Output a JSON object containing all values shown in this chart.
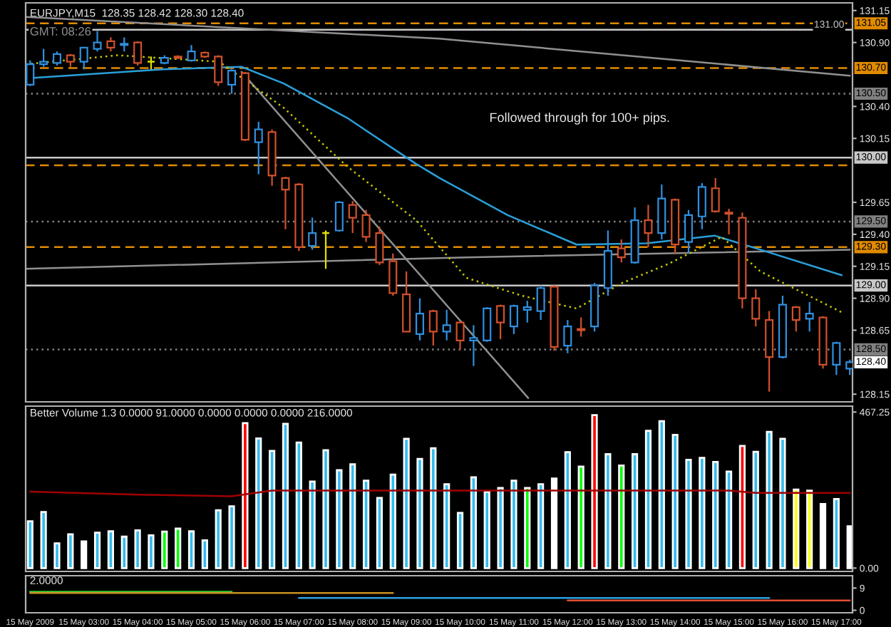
{
  "chart_data": [
    {
      "type": "candlestick",
      "title": "EURJPY,M15  128.35 128.42 128.30 128.40",
      "subtitle": "GMT: 08:26",
      "annotations": [
        "Followed through for 100+ pips.",
        {
          "text": "128.40",
          "x": "2009-05-15T17:15",
          "y": 128.4
        }
      ],
      "x": [
        "2009-05-15T02:00",
        "2009-05-15T02:15",
        "2009-05-15T02:30",
        "2009-05-15T02:45",
        "2009-05-15T03:00",
        "2009-05-15T03:15",
        "2009-05-15T03:30",
        "2009-05-15T03:45",
        "2009-05-15T04:00",
        "2009-05-15T04:15",
        "2009-05-15T04:30",
        "2009-05-15T04:45",
        "2009-05-15T05:00",
        "2009-05-15T05:15",
        "2009-05-15T05:30",
        "2009-05-15T05:45",
        "2009-05-15T06:00",
        "2009-05-15T06:15",
        "2009-05-15T06:30",
        "2009-05-15T06:45",
        "2009-05-15T07:00",
        "2009-05-15T07:15",
        "2009-05-15T07:30",
        "2009-05-15T07:45",
        "2009-05-15T08:00",
        "2009-05-15T08:15",
        "2009-05-15T08:30",
        "2009-05-15T08:45",
        "2009-05-15T09:00",
        "2009-05-15T09:15",
        "2009-05-15T09:30",
        "2009-05-15T09:45",
        "2009-05-15T10:00",
        "2009-05-15T10:15",
        "2009-05-15T10:30",
        "2009-05-15T10:45",
        "2009-05-15T11:00",
        "2009-05-15T11:15",
        "2009-05-15T11:30",
        "2009-05-15T11:45",
        "2009-05-15T12:00",
        "2009-05-15T12:15",
        "2009-05-15T12:30",
        "2009-05-15T12:45",
        "2009-05-15T13:00",
        "2009-05-15T13:15",
        "2009-05-15T13:30",
        "2009-05-15T13:45",
        "2009-05-15T14:00",
        "2009-05-15T14:15",
        "2009-05-15T14:30",
        "2009-05-15T14:45",
        "2009-05-15T15:00",
        "2009-05-15T15:15",
        "2009-05-15T15:30",
        "2009-05-15T15:45",
        "2009-05-15T16:00",
        "2009-05-15T16:15",
        "2009-05-15T16:30",
        "2009-05-15T16:45",
        "2009-05-15T17:00",
        "2009-05-15T17:15"
      ],
      "ohlc": [
        [
          130.57,
          130.76,
          130.56,
          130.73
        ],
        [
          130.73,
          130.85,
          130.71,
          130.75
        ],
        [
          130.74,
          130.83,
          130.72,
          130.81
        ],
        [
          130.8,
          130.81,
          130.71,
          130.75
        ],
        [
          130.75,
          130.86,
          130.69,
          130.86
        ],
        [
          130.85,
          130.99,
          130.83,
          130.9
        ],
        [
          130.91,
          130.94,
          130.83,
          130.86
        ],
        [
          130.88,
          130.94,
          130.83,
          130.89
        ],
        [
          130.9,
          130.91,
          130.72,
          130.74
        ],
        [
          130.75,
          130.79,
          130.69,
          130.75
        ],
        [
          130.74,
          130.8,
          130.73,
          130.78
        ],
        [
          130.79,
          130.8,
          130.77,
          130.78
        ],
        [
          130.76,
          130.88,
          130.75,
          130.83
        ],
        [
          130.82,
          130.83,
          130.78,
          130.79
        ],
        [
          130.79,
          130.8,
          130.56,
          130.59
        ],
        [
          130.57,
          130.69,
          130.5,
          130.68
        ],
        [
          130.66,
          130.67,
          130.13,
          130.14
        ],
        [
          130.12,
          130.28,
          129.87,
          130.22
        ],
        [
          130.2,
          130.22,
          129.78,
          129.86
        ],
        [
          129.84,
          129.85,
          129.44,
          129.75
        ],
        [
          129.79,
          129.8,
          129.27,
          129.3
        ],
        [
          129.31,
          129.53,
          129.28,
          129.41
        ],
        [
          129.41,
          129.43,
          129.13,
          129.41
        ],
        [
          129.43,
          129.66,
          129.42,
          129.65
        ],
        [
          129.63,
          129.66,
          129.41,
          129.53
        ],
        [
          129.55,
          129.59,
          129.34,
          129.38
        ],
        [
          129.41,
          129.46,
          129.16,
          129.18
        ],
        [
          129.19,
          129.25,
          128.92,
          128.94
        ],
        [
          128.93,
          129.11,
          128.64,
          128.64
        ],
        [
          128.62,
          128.9,
          128.57,
          128.78
        ],
        [
          128.8,
          128.81,
          128.53,
          128.64
        ],
        [
          128.64,
          128.81,
          128.57,
          128.69
        ],
        [
          128.71,
          128.72,
          128.5,
          128.57
        ],
        [
          128.57,
          128.69,
          128.37,
          128.59
        ],
        [
          128.57,
          128.83,
          128.56,
          128.82
        ],
        [
          128.84,
          128.85,
          128.58,
          128.71
        ],
        [
          128.68,
          128.85,
          128.62,
          128.84
        ],
        [
          128.81,
          128.88,
          128.71,
          128.83
        ],
        [
          128.8,
          129.0,
          128.73,
          128.98
        ],
        [
          128.99,
          129.0,
          128.49,
          128.52
        ],
        [
          128.53,
          128.73,
          128.47,
          128.68
        ],
        [
          128.66,
          128.75,
          128.6,
          128.65
        ],
        [
          128.68,
          129.02,
          128.64,
          129.0
        ],
        [
          128.98,
          129.43,
          128.92,
          129.27
        ],
        [
          129.29,
          129.36,
          129.18,
          129.22
        ],
        [
          129.18,
          129.61,
          129.17,
          129.51
        ],
        [
          129.51,
          129.63,
          129.3,
          129.41
        ],
        [
          129.41,
          129.79,
          129.36,
          129.68
        ],
        [
          129.67,
          129.68,
          129.25,
          129.32
        ],
        [
          129.34,
          129.59,
          129.25,
          129.55
        ],
        [
          129.54,
          129.8,
          129.44,
          129.77
        ],
        [
          129.76,
          129.84,
          129.57,
          129.58
        ],
        [
          129.57,
          129.6,
          129.4,
          129.56
        ],
        [
          129.53,
          129.57,
          128.82,
          128.9
        ],
        [
          128.9,
          128.97,
          128.68,
          128.74
        ],
        [
          128.73,
          128.8,
          128.17,
          128.44
        ],
        [
          128.44,
          128.92,
          128.43,
          128.85
        ],
        [
          128.83,
          128.84,
          128.64,
          128.73
        ],
        [
          128.74,
          128.87,
          128.64,
          128.78
        ],
        [
          128.75,
          128.76,
          128.35,
          128.38
        ],
        [
          128.38,
          128.56,
          128.3,
          128.55
        ],
        [
          128.35,
          128.42,
          128.3,
          128.4
        ]
      ],
      "colors": [
        "#2f8fdf",
        "#2f8fdf",
        "#2f8fdf",
        "#d0502c",
        "#2f8fdf",
        "#2f8fdf",
        "#d0502c",
        "#2f8fdf",
        "#d0502c",
        "#e0e000",
        "#2f8fdf",
        "#d0502c",
        "#2f8fdf",
        "#d0502c",
        "#d0502c",
        "#2f8fdf",
        "#d0502c",
        "#2f8fdf",
        "#d0502c",
        "#d0502c",
        "#d0502c",
        "#2f8fdf",
        "#e0e000",
        "#2f8fdf",
        "#d0502c",
        "#d0502c",
        "#d0502c",
        "#d0502c",
        "#d0502c",
        "#2f8fdf",
        "#d0502c",
        "#2f8fdf",
        "#d0502c",
        "#2f8fdf",
        "#2f8fdf",
        "#d0502c",
        "#2f8fdf",
        "#2f8fdf",
        "#2f8fdf",
        "#d0502c",
        "#2f8fdf",
        "#d0502c",
        "#2f8fdf",
        "#2f8fdf",
        "#d0502c",
        "#2f8fdf",
        "#d0502c",
        "#2f8fdf",
        "#d0502c",
        "#2f8fdf",
        "#2f8fdf",
        "#d0502c",
        "#d0502c",
        "#d0502c",
        "#d0502c",
        "#d0502c",
        "#2f8fdf",
        "#d0502c",
        "#2f8fdf",
        "#d0502c",
        "#2f8fdf",
        "#2f8fdf"
      ],
      "series": [
        {
          "type": "line",
          "color": "#909090",
          "line_style": "solid",
          "x": [
            "2009-05-15T01:55",
            "2009-05-15T09:37",
            "2009-05-15T17:15"
          ],
          "values": [
            131.1,
            130.93,
            130.64
          ]
        },
        {
          "type": "line",
          "color": "#909090",
          "line_style": "solid",
          "x": [
            "2009-05-15T05:56",
            "2009-05-15T11:16"
          ],
          "values": [
            130.67,
            128.12
          ]
        },
        {
          "type": "line",
          "color": "#909090",
          "line_style": "solid",
          "x": [
            "2009-05-15T01:55",
            "2009-05-15T10:07",
            "2009-05-15T17:15"
          ],
          "values": [
            129.13,
            129.22,
            129.28
          ]
        },
        {
          "type": "line",
          "color": "#2a9fd8",
          "line_style": "solid",
          "x": [
            "2009-05-15T01:55",
            "2009-05-15T04:29",
            "2009-05-15T05:56",
            "2009-05-15T06:43",
            "2009-05-15T07:54",
            "2009-05-15T09:11",
            "2009-05-15T09:37",
            "2009-05-15T10:53",
            "2009-05-15T12:10",
            "2009-05-15T13:28",
            "2009-05-15T14:44",
            "2009-05-15T15:35",
            "2009-05-15T17:06"
          ],
          "values": [
            130.62,
            130.69,
            130.71,
            130.58,
            130.31,
            129.95,
            129.84,
            129.55,
            129.32,
            129.33,
            129.39,
            129.28,
            129.08
          ]
        },
        {
          "type": "line",
          "color": "#c8c800",
          "line_style": "dotted",
          "x": [
            "2009-05-15T01:55",
            "2009-05-15T03:38",
            "2009-05-15T05:31",
            "2009-05-15T06:43",
            "2009-05-15T07:54",
            "2009-05-15T09:11",
            "2009-05-15T10:07",
            "2009-05-15T11:09",
            "2009-05-15T12:10",
            "2009-05-15T13:01",
            "2009-05-15T13:53",
            "2009-05-15T14:52",
            "2009-05-15T15:35",
            "2009-05-15T17:06"
          ],
          "values": [
            130.73,
            130.8,
            130.75,
            130.39,
            129.93,
            129.51,
            129.06,
            128.92,
            128.82,
            129.02,
            129.17,
            129.38,
            129.11,
            128.79
          ]
        }
      ],
      "ref_lines": [
        {
          "axis": "y",
          "value": 131.05,
          "label": "131.05",
          "color": "#e08a00",
          "line_style": "dashed"
        },
        {
          "axis": "y",
          "value": 131.0,
          "label": "131.00",
          "color": "#c8c8c8",
          "line_style": "solid"
        },
        {
          "axis": "y",
          "value": 130.7,
          "label": "130.70",
          "color": "#e08a00",
          "line_style": "dashed"
        },
        {
          "axis": "y",
          "value": 130.5,
          "label": "130.50",
          "color": "#808080",
          "line_style": "dotted"
        },
        {
          "axis": "y",
          "value": 130.0,
          "label": "130.00",
          "color": "#c8c8c8",
          "line_style": "solid"
        },
        {
          "axis": "y",
          "value": 129.94,
          "label": null,
          "color": "#e08a00",
          "line_style": "dashed"
        },
        {
          "axis": "y",
          "value": 129.5,
          "label": "129.50",
          "color": "#808080",
          "line_style": "dotted"
        },
        {
          "axis": "y",
          "value": 129.3,
          "label": "129.30",
          "color": "#e08a00",
          "line_style": "dashed"
        },
        {
          "axis": "y",
          "value": 129.0,
          "label": "129.00",
          "color": "#c8c8c8",
          "line_style": "solid"
        },
        {
          "axis": "y",
          "value": 128.5,
          "label": "128.50",
          "color": "#808080",
          "line_style": "dotted"
        }
      ],
      "xlim": [
        "2009-05-15T01:55",
        "2009-05-15T17:18"
      ],
      "ylim": [
        128.09,
        131.21
      ],
      "yticks": [
        131.15,
        {
          "value": 130.9,
          "label": "130.90"
        },
        {
          "value": 130.4,
          "label": "130.40"
        },
        130.15,
        129.65,
        {
          "value": 129.4,
          "label": "129.40"
        },
        129.15,
        {
          "value": 128.9,
          "label": "128.90"
        },
        128.65,
        128.15
      ],
      "tick_labels": "y",
      "grid": false
    },
    {
      "type": "bar",
      "title": "Better Volume 1.3 0.0000 91.0000 0.0000 0.0000 0.0000 216.0000",
      "x": [
        "2009-05-15T02:00",
        "2009-05-15T02:15",
        "2009-05-15T02:30",
        "2009-05-15T02:45",
        "2009-05-15T03:00",
        "2009-05-15T03:15",
        "2009-05-15T03:30",
        "2009-05-15T03:45",
        "2009-05-15T04:00",
        "2009-05-15T04:15",
        "2009-05-15T04:30",
        "2009-05-15T04:45",
        "2009-05-15T05:00",
        "2009-05-15T05:15",
        "2009-05-15T05:30",
        "2009-05-15T05:45",
        "2009-05-15T06:00",
        "2009-05-15T06:15",
        "2009-05-15T06:30",
        "2009-05-15T06:45",
        "2009-05-15T07:00",
        "2009-05-15T07:15",
        "2009-05-15T07:30",
        "2009-05-15T07:45",
        "2009-05-15T08:00",
        "2009-05-15T08:15",
        "2009-05-15T08:30",
        "2009-05-15T08:45",
        "2009-05-15T09:00",
        "2009-05-15T09:15",
        "2009-05-15T09:30",
        "2009-05-15T09:45",
        "2009-05-15T10:00",
        "2009-05-15T10:15",
        "2009-05-15T10:30",
        "2009-05-15T10:45",
        "2009-05-15T11:00",
        "2009-05-15T11:15",
        "2009-05-15T11:30",
        "2009-05-15T11:45",
        "2009-05-15T12:00",
        "2009-05-15T12:15",
        "2009-05-15T12:30",
        "2009-05-15T12:45",
        "2009-05-15T13:00",
        "2009-05-15T13:15",
        "2009-05-15T13:30",
        "2009-05-15T13:45",
        "2009-05-15T14:00",
        "2009-05-15T14:15",
        "2009-05-15T14:30",
        "2009-05-15T14:45",
        "2009-05-15T15:00",
        "2009-05-15T15:15",
        "2009-05-15T15:30",
        "2009-05-15T15:45",
        "2009-05-15T16:00",
        "2009-05-15T16:15",
        "2009-05-15T16:30",
        "2009-05-15T16:45",
        "2009-05-15T17:00",
        "2009-05-15T17:15"
      ],
      "values": [
        140,
        168,
        74,
        101,
        80,
        106,
        110,
        94,
        113,
        98,
        109,
        118,
        110,
        83,
        173,
        185,
        434,
        388,
        351,
        432,
        376,
        259,
        353,
        293,
        311,
        262,
        210,
        280,
        387,
        327,
        359,
        251,
        165,
        272,
        228,
        240,
        262,
        240,
        251,
        268,
        347,
        304,
        458,
        341,
        307,
        341,
        411,
        440,
        399,
        324,
        330,
        318,
        289,
        366,
        348,
        408,
        387,
        235,
        232,
        192,
        207,
        125
      ],
      "colors": [
        "#33bbee",
        "#33bbee",
        "#33bbee",
        "#33bbee",
        "#ffffff",
        "#33bbee",
        "#33bbee",
        "#33bbee",
        "#33bbee",
        "#33bbee",
        "#00ff00",
        "#00ff00",
        "#33bbee",
        "#33bbee",
        "#33bbee",
        "#33bbee",
        "#ff0000",
        "#33bbee",
        "#33bbee",
        "#33bbee",
        "#33bbee",
        "#33bbee",
        "#33bbee",
        "#33bbee",
        "#33bbee",
        "#33bbee",
        "#33bbee",
        "#33bbee",
        "#33bbee",
        "#33bbee",
        "#33bbee",
        "#33bbee",
        "#33bbee",
        "#33bbee",
        "#33bbee",
        "#33bbee",
        "#33bbee",
        "#00ff00",
        "#33bbee",
        "#ffffff",
        "#33bbee",
        "#00ff00",
        "#ff0000",
        "#33bbee",
        "#00ff00",
        "#33bbee",
        "#33bbee",
        "#33bbee",
        "#33bbee",
        "#33bbee",
        "#33bbee",
        "#33bbee",
        "#33bbee",
        "#ff0000",
        "#33bbee",
        "#33bbee",
        "#33bbee",
        "#ffff00",
        "#ffff00",
        "#ffffff",
        "#33bbee",
        "#ffffff"
      ],
      "series": [
        {
          "type": "line",
          "color": "#a00000",
          "line_style": "solid",
          "x": [
            "2009-05-15T02:00",
            "2009-05-15T04:00",
            "2009-05-15T05:45",
            "2009-05-15T06:30",
            "2009-05-15T15:00",
            "2009-05-15T15:30",
            "2009-05-15T17:15"
          ],
          "values": [
            229,
            220,
            215,
            232,
            232,
            225,
            225
          ]
        }
      ],
      "xlim": [
        "2009-05-15T01:55",
        "2009-05-15T17:18"
      ],
      "ylim": [
        -10,
        485
      ],
      "yticks": [
        {
          "value": 467.25,
          "label": "467.25"
        },
        {
          "value": 0,
          "label": "0.00"
        }
      ],
      "tick_labels": "y",
      "grid": false
    },
    {
      "type": "line",
      "title": "2.0000",
      "series": [
        {
          "color": "#33cc33",
          "line_style": "solid",
          "x": [
            "2009-05-15T02:00",
            "2009-05-15T05:45"
          ],
          "values": [
            7.5,
            7.5
          ]
        },
        {
          "color": "#c89020",
          "line_style": "solid",
          "x": [
            "2009-05-15T02:00",
            "2009-05-15T08:45"
          ],
          "values": [
            7,
            7
          ]
        },
        {
          "color": "#2aa0e0",
          "line_style": "solid",
          "x": [
            "2009-05-15T07:00",
            "2009-05-15T15:45"
          ],
          "values": [
            5,
            5
          ]
        },
        {
          "color": "#e05030",
          "line_style": "solid",
          "x": [
            "2009-05-15T12:00",
            "2009-05-15T17:15"
          ],
          "values": [
            4,
            4
          ]
        }
      ],
      "xlim": [
        "2009-05-15T01:55",
        "2009-05-15T17:18"
      ],
      "ylim": [
        -1,
        14
      ],
      "yticks": [
        9,
        0
      ],
      "xticks": [
        {
          "value": "2009-05-15T02:00",
          "label": "15 May 2009"
        },
        {
          "value": "2009-05-15T03:00",
          "label": "15 May 03:00"
        },
        {
          "value": "2009-05-15T04:00",
          "label": "15 May 04:00"
        },
        {
          "value": "2009-05-15T05:00",
          "label": "15 May 05:00"
        },
        {
          "value": "2009-05-15T06:00",
          "label": "15 May 06:00"
        },
        {
          "value": "2009-05-15T07:00",
          "label": "15 May 07:00"
        },
        {
          "value": "2009-05-15T08:00",
          "label": "15 May 08:00"
        },
        {
          "value": "2009-05-15T09:00",
          "label": "15 May 09:00"
        },
        {
          "value": "2009-05-15T10:00",
          "label": "15 May 10:00"
        },
        {
          "value": "2009-05-15T11:00",
          "label": "15 May 11:00"
        },
        {
          "value": "2009-05-15T12:00",
          "label": "15 May 12:00"
        },
        {
          "value": "2009-05-15T13:00",
          "label": "15 May 13:00"
        },
        {
          "value": "2009-05-15T14:00",
          "label": "15 May 14:00"
        },
        {
          "value": "2009-05-15T15:00",
          "label": "15 May 15:00"
        },
        {
          "value": "2009-05-15T16:00",
          "label": "15 May 16:00"
        },
        {
          "value": "2009-05-15T17:00",
          "label": "15 May 17:00"
        }
      ],
      "grid": false
    }
  ]
}
